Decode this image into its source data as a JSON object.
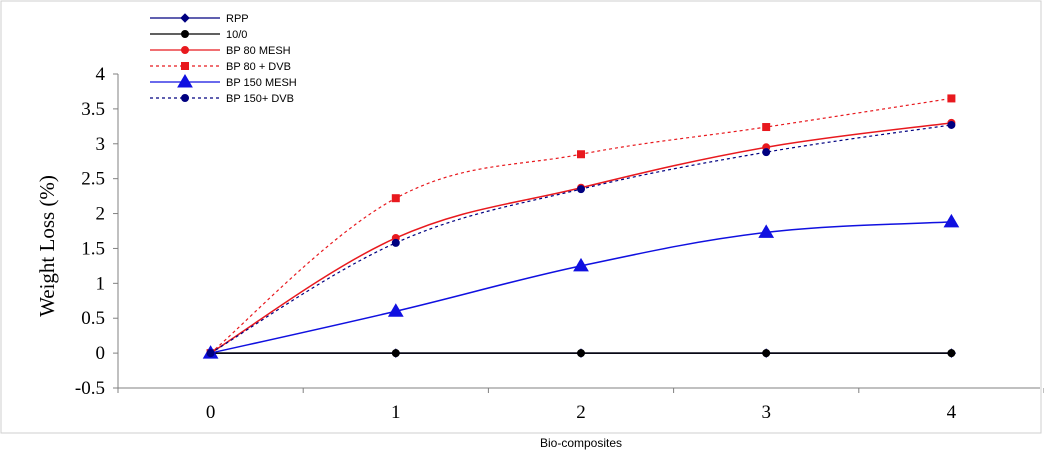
{
  "chart_data": {
    "type": "line",
    "title": "",
    "xlabel": "Bio-composites",
    "ylabel": "Weight Loss (%)",
    "x": [
      0,
      1,
      2,
      3,
      4
    ],
    "x_tick_labels": [
      "0",
      "1",
      "2",
      "3",
      "4"
    ],
    "xlim": [
      -0.5,
      4.5
    ],
    "ylim": [
      -0.5,
      4
    ],
    "y_ticks": [
      -0.5,
      0,
      0.5,
      1,
      1.5,
      2,
      2.5,
      3,
      3.5,
      4
    ],
    "y_tick_labels": [
      "-0.5",
      "0",
      "0.5",
      "1",
      "1.5",
      "2",
      "2.5",
      "3",
      "3.5",
      "4"
    ],
    "grid": false,
    "legend_position": "top-left",
    "series": [
      {
        "name": "RPP",
        "values": [
          0,
          0,
          0,
          0,
          0
        ],
        "color": "#000080",
        "dash": "solid",
        "marker": "diamond",
        "smooth": false
      },
      {
        "name": "10/0",
        "values": [
          0,
          0,
          0,
          0,
          0
        ],
        "color": "#000000",
        "dash": "solid",
        "marker": "circle",
        "smooth": false
      },
      {
        "name": "BP 80 MESH",
        "values": [
          0,
          1.65,
          2.37,
          2.95,
          3.3
        ],
        "color": "#e8191e",
        "dash": "solid",
        "marker": "circle",
        "smooth": true
      },
      {
        "name": "BP 80 + DVB",
        "values": [
          0,
          2.22,
          2.85,
          3.24,
          3.65
        ],
        "color": "#e8191e",
        "dash": "dotted",
        "marker": "square",
        "smooth": true
      },
      {
        "name": "BP 150 MESH",
        "values": [
          0,
          0.6,
          1.25,
          1.73,
          1.88
        ],
        "color": "#1010e0",
        "dash": "solid",
        "marker": "triangle",
        "smooth": true
      },
      {
        "name": "BP 150+ DVB",
        "values": [
          0,
          1.58,
          2.35,
          2.88,
          3.27
        ],
        "color": "#000080",
        "dash": "dotted",
        "marker": "circle",
        "smooth": true
      }
    ]
  }
}
